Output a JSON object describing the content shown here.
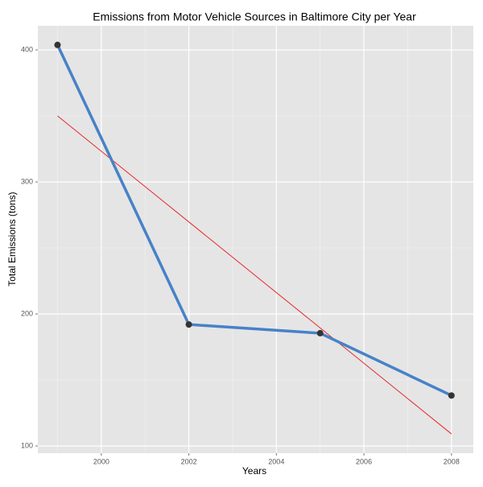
{
  "chart_data": {
    "type": "line",
    "title": "Emissions from Motor Vehicle Sources in Baltimore City per Year",
    "xlabel": "Years",
    "ylabel": "Total Emissions (tons)",
    "x": [
      1999,
      2002,
      2005,
      2008
    ],
    "values": [
      403.8,
      192.0,
      185.4,
      138.2
    ],
    "color": "#4682c8",
    "marker_color": "#333333",
    "trend": {
      "x": [
        1999,
        2008
      ],
      "values": [
        350,
        109.1
      ],
      "color": "#e8262a"
    },
    "xlim": [
      1998.55,
      2008.5
    ],
    "ylim": [
      94.5,
      418.3
    ],
    "xticks": [
      2000,
      2002,
      2004,
      2006,
      2008
    ],
    "yticks": [
      100,
      200,
      300,
      400
    ],
    "xminor": [
      1999,
      2001,
      2003,
      2005,
      2007
    ],
    "yminor": [
      150,
      250,
      350
    ],
    "grid": true
  }
}
